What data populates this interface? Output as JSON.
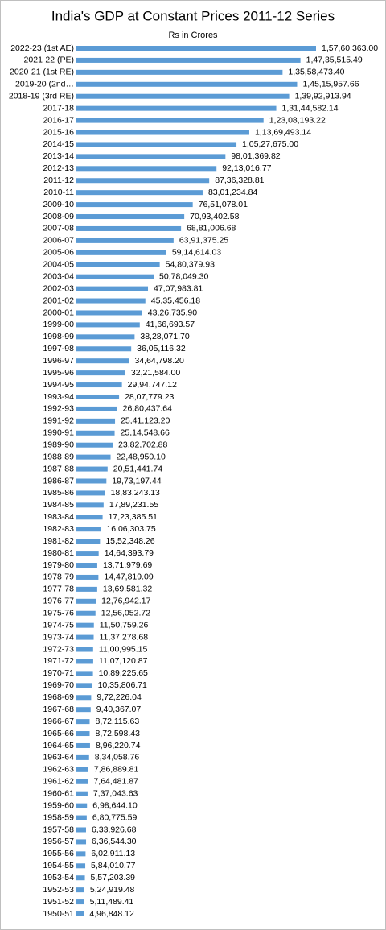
{
  "chart_data": {
    "type": "bar",
    "orientation": "horizontal",
    "title": "India's GDP at Constant Prices 2011-12 Series",
    "subtitle": "Rs in Crores",
    "color": "#5b9bd5",
    "categories": [
      "2022-23 (1st AE)",
      "2021-22 (PE)",
      "2020-21 (1st RE)",
      "2019-20 (2nd…",
      "2018-19 (3rd RE)",
      "2017-18",
      "2016-17",
      "2015-16",
      "2014-15",
      "2013-14",
      "2012-13",
      "2011-12",
      "2010-11",
      "2009-10",
      "2008-09",
      "2007-08",
      "2006-07",
      "2005-06",
      "2004-05",
      "2003-04",
      "2002-03",
      "2001-02",
      "2000-01",
      "1999-00",
      "1998-99",
      "1997-98",
      "1996-97",
      "1995-96",
      "1994-95",
      "1993-94",
      "1992-93",
      "1991-92",
      "1990-91",
      "1989-90",
      "1988-89",
      "1987-88",
      "1986-87",
      "1985-86",
      "1984-85",
      "1983-84",
      "1982-83",
      "1981-82",
      "1980-81",
      "1979-80",
      "1978-79",
      "1977-78",
      "1976-77",
      "1975-76",
      "1974-75",
      "1973-74",
      "1972-73",
      "1971-72",
      "1970-71",
      "1969-70",
      "1968-69",
      "1967-68",
      "1966-67",
      "1965-66",
      "1964-65",
      "1963-64",
      "1962-63",
      "1961-62",
      "1960-61",
      "1959-60",
      "1958-59",
      "1957-58",
      "1956-57",
      "1955-56",
      "1954-55",
      "1953-54",
      "1952-53",
      "1951-52",
      "1950-51"
    ],
    "values": [
      15760363.0,
      14735515.49,
      13558473.4,
      14515957.66,
      13992913.94,
      13144582.14,
      12308193.22,
      11369493.14,
      10527675.0,
      9801369.82,
      9213016.77,
      8736328.81,
      8301234.84,
      7651078.01,
      7093402.58,
      6881006.68,
      6391375.25,
      5914614.03,
      5480379.93,
      5078049.3,
      4707983.81,
      4535456.18,
      4326735.9,
      4166693.57,
      3828071.7,
      3605116.32,
      3464798.2,
      3221584.0,
      2994747.12,
      2807779.23,
      2680437.64,
      2541123.2,
      2514548.66,
      2382702.88,
      2248950.1,
      2051441.74,
      1973197.44,
      1883243.13,
      1789231.55,
      1723385.51,
      1606303.75,
      1552348.26,
      1464393.79,
      1371979.69,
      1447819.09,
      1369581.32,
      1276942.17,
      1256052.72,
      1150759.26,
      1137278.68,
      1100995.15,
      1107120.87,
      1089225.65,
      1035806.71,
      972226.04,
      940367.07,
      872115.63,
      872598.43,
      896220.74,
      834058.76,
      786889.81,
      764481.87,
      737043.63,
      698644.1,
      680775.59,
      633926.68,
      636544.3,
      602911.13,
      584010.77,
      557203.39,
      524919.48,
      511489.41,
      496848.12
    ],
    "value_labels": [
      "1,57,60,363.00",
      "1,47,35,515.49",
      "1,35,58,473.40",
      "1,45,15,957.66",
      "1,39,92,913.94",
      "1,31,44,582.14",
      "1,23,08,193.22",
      "1,13,69,493.14",
      "1,05,27,675.00",
      "98,01,369.82",
      "92,13,016.77",
      "87,36,328.81",
      "83,01,234.84",
      "76,51,078.01",
      "70,93,402.58",
      "68,81,006.68",
      "63,91,375.25",
      "59,14,614.03",
      "54,80,379.93",
      "50,78,049.30",
      "47,07,983.81",
      "45,35,456.18",
      "43,26,735.90",
      "41,66,693.57",
      "38,28,071.70",
      "36,05,116.32",
      "34,64,798.20",
      "32,21,584.00",
      "29,94,747.12",
      "28,07,779.23",
      "26,80,437.64",
      "25,41,123.20",
      "25,14,548.66",
      "23,82,702.88",
      "22,48,950.10",
      "20,51,441.74",
      "19,73,197.44",
      "18,83,243.13",
      "17,89,231.55",
      "17,23,385.51",
      "16,06,303.75",
      "15,52,348.26",
      "14,64,393.79",
      "13,71,979.69",
      "14,47,819.09",
      "13,69,581.32",
      "12,76,942.17",
      "12,56,052.72",
      "11,50,759.26",
      "11,37,278.68",
      "11,00,995.15",
      "11,07,120.87",
      "10,89,225.65",
      "10,35,806.71",
      "9,72,226.04",
      "9,40,367.07",
      "8,72,115.63",
      "8,72,598.43",
      "8,96,220.74",
      "8,34,058.76",
      "7,86,889.81",
      "7,64,481.87",
      "7,37,043.63",
      "6,98,644.10",
      "6,80,775.59",
      "6,33,926.68",
      "6,36,544.30",
      "6,02,911.13",
      "5,84,010.77",
      "5,57,203.39",
      "5,24,919.48",
      "5,11,489.41",
      "4,96,848.12"
    ]
  }
}
